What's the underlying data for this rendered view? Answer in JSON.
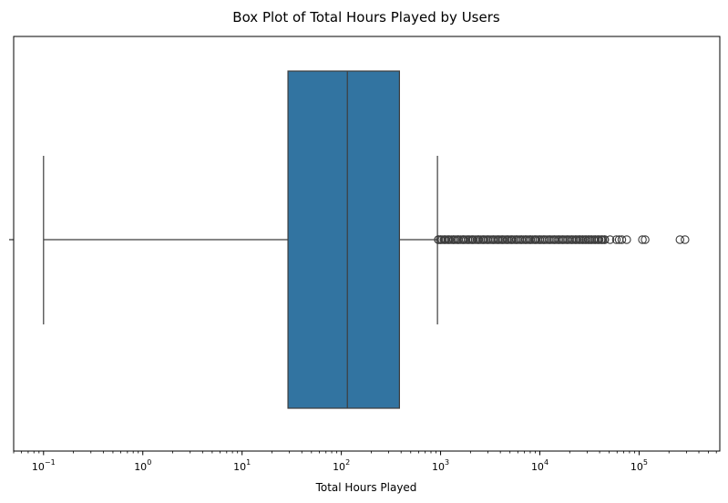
{
  "chart_data": {
    "type": "boxplot",
    "title": "Box Plot of Total Hours Played by Users",
    "xlabel": "Total Hours Played",
    "ylabel": "",
    "x_scale": "log",
    "xlim": [
      0.05,
      650000
    ],
    "grid": false,
    "legend": "none",
    "x_ticks": [
      {
        "value": 0.1,
        "base": "10",
        "exp": "−1"
      },
      {
        "value": 1,
        "base": "10",
        "exp": "0"
      },
      {
        "value": 10,
        "base": "10",
        "exp": "1"
      },
      {
        "value": 100,
        "base": "10",
        "exp": "2"
      },
      {
        "value": 1000,
        "base": "10",
        "exp": "3"
      },
      {
        "value": 10000,
        "base": "10",
        "exp": "4"
      },
      {
        "value": 100000,
        "base": "10",
        "exp": "5"
      }
    ],
    "box": {
      "whisker_low": 0.1,
      "q1": 29,
      "median": 115,
      "q3": 385,
      "whisker_high": 930
    },
    "outliers": [
      950,
      1000,
      1100,
      1200,
      1350,
      1500,
      1700,
      1900,
      2100,
      2400,
      2700,
      3000,
      3400,
      3800,
      4200,
      4700,
      5200,
      5800,
      6500,
      7200,
      8000,
      9000,
      10000,
      11000,
      12500,
      14000,
      15500,
      17000,
      19000,
      21000,
      23000,
      25000,
      27000,
      29000,
      31000,
      33000,
      36000,
      39000,
      42000,
      45000,
      51000,
      59000,
      63000,
      67000,
      75000,
      108000,
      115000,
      258000,
      290000
    ],
    "colors": {
      "box_fill": "#3274a1",
      "line": "#3d3d3d",
      "axis": "#000000"
    }
  }
}
